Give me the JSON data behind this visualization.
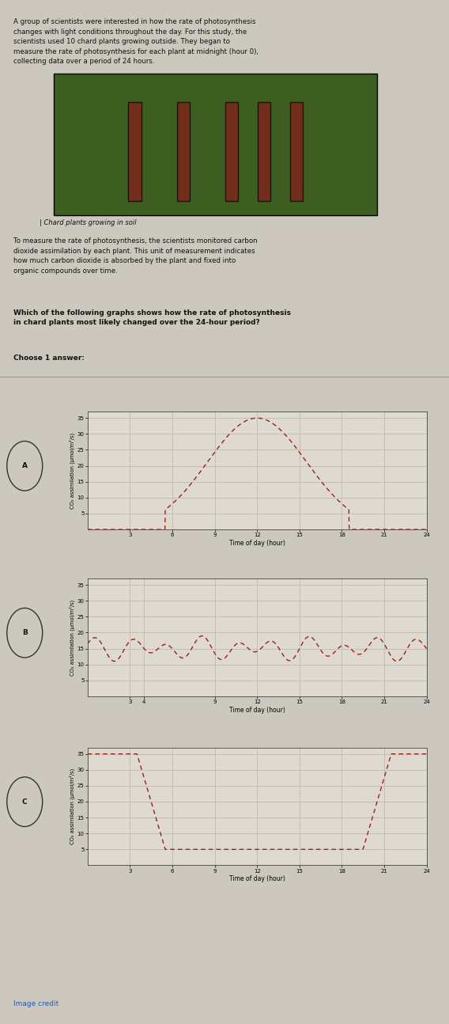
{
  "bg_color": "#ccc8be",
  "text_color": "#111111",
  "title_text": "A group of scientists were interested in how the rate of photosynthesis\nchanges with light conditions throughout the day. For this study, the\nscientists used 10 chard plants growing outside. They began to\nmeasure the rate of photosynthesis for each plant at midnight (hour 0),\ncollecting data over a period of 24 hours.",
  "caption": "| Chard plants growing in soil",
  "paragraph": "To measure the rate of photosynthesis, the scientists monitored carbon\ndioxide assimilation by each plant. This unit of measurement indicates\nhow much carbon dioxide is absorbed by the plant and fixed into\norganic compounds over time.",
  "question": "Which of the following graphs shows how the rate of photosynthesis\nin chard plants most likely changed over the 24-hour period?",
  "choose": "Choose 1 answer:",
  "graph_bg": "#dedad0",
  "grid_color": "#b8b4a8",
  "line_color": "#9b2020",
  "ylabel_a": "CO₂ assimilation (μmol/m²/s)",
  "ylabel_b": "CO₂ assimilation (μmol/m²/s)",
  "ylabel_c": "CO₂ assimilation (μmol/m²/s)",
  "xlabel_a": "Time of day (hour)",
  "xlabel_b": "Time of day (hour)",
  "xlabel_c": "Time of day (hour)",
  "yticks": [
    5,
    10,
    15,
    20,
    25,
    30,
    35
  ],
  "ylim": [
    0,
    37
  ],
  "xticks_a": [
    3,
    6,
    9,
    12,
    15,
    18,
    21,
    24
  ],
  "xticks_b": [
    3,
    4,
    9,
    12,
    15,
    18,
    21,
    24
  ],
  "xticks_c": [
    3,
    6,
    9,
    12,
    15,
    18,
    21,
    24
  ],
  "nav_color": "#4a7db5",
  "credit_color": "#3355aa",
  "image_top_color": "#6b8f3e",
  "image_mid_color": "#8b2020",
  "separator_color": "#999999"
}
